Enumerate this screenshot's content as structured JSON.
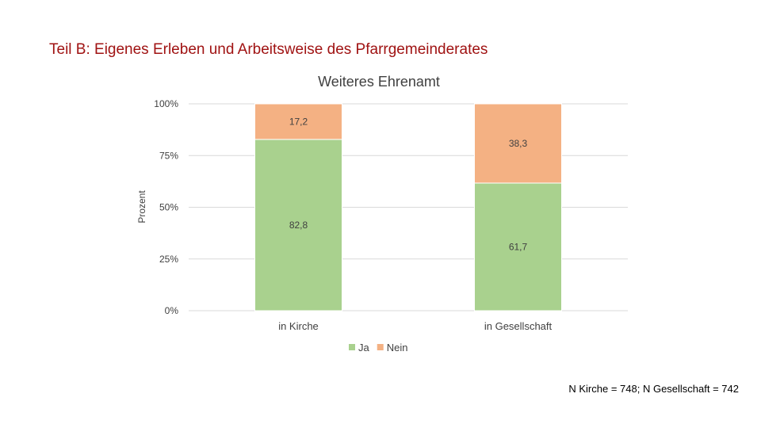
{
  "slide": {
    "title": "Teil B: Eigenes Erleben und Arbeitsweise des Pfarrgemeinderates",
    "footnote": "N Kirche = 748; N Gesellschaft = 742"
  },
  "chart_data": {
    "type": "bar",
    "stacked": true,
    "title": "Weiteres Ehrenamt",
    "xlabel": "",
    "ylabel": "Prozent",
    "categories": [
      "in Kirche",
      "in Gesellschaft"
    ],
    "series": [
      {
        "name": "Ja",
        "values": [
          82.8,
          61.7
        ],
        "labels": [
          "82,8",
          "61,7"
        ],
        "color": "#a9d18e"
      },
      {
        "name": "Nein",
        "values": [
          17.2,
          38.3
        ],
        "labels": [
          "17,2",
          "38,3"
        ],
        "color": "#f4b183"
      }
    ],
    "ylim": [
      0,
      100
    ],
    "yticks": [
      0,
      25,
      50,
      75,
      100
    ],
    "ytick_labels": [
      "0%",
      "25%",
      "50%",
      "75%",
      "100%"
    ],
    "grid": true,
    "legend": "bottom-center"
  }
}
